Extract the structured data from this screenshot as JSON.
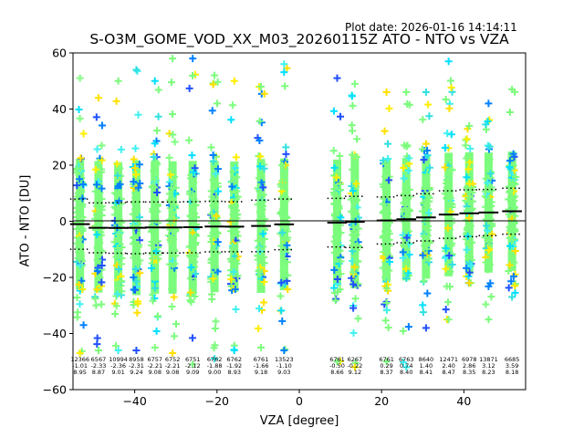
{
  "plot_date": "Plot date: 2026-01-16 14:14:11",
  "colors": {
    "palette": [
      "#7cfc7c",
      "#7cfc7c",
      "#7cfc7c",
      "#80ff80",
      "#7cfc7c",
      "#40f0f0",
      "#30e0e0",
      "#ffee00",
      "#ffe000",
      "#0080ff",
      "#2050ff",
      "#00e0ff"
    ],
    "median": "#000000",
    "frame": "#000000"
  },
  "chart_data": {
    "type": "scatter",
    "title": "S-O3M_GOME_VOD_XX_M03_20260115Z ATO - NTO vs VZA",
    "xlabel": "VZA [degree]",
    "ylabel": "ATO - NTO [DU]",
    "xlim": [
      -55,
      55
    ],
    "ylim": [
      -60,
      60
    ],
    "xticks": [
      -40,
      -20,
      0,
      20,
      40
    ],
    "yticks": [
      -60,
      -40,
      -20,
      0,
      20,
      40,
      60
    ],
    "grid": false,
    "zero_line": 0,
    "bins": [
      {
        "x": -53.3,
        "n": 12366,
        "mean": -1.01,
        "std": 8.95,
        "ymin": -47,
        "ymax": 51
      },
      {
        "x": -48.8,
        "n": 6567,
        "mean": -2.33,
        "std": 8.87,
        "ymin": -46,
        "ymax": 44
      },
      {
        "x": -44.0,
        "n": 10994,
        "mean": -2.36,
        "std": 9.01,
        "ymin": -46,
        "ymax": 50
      },
      {
        "x": -39.6,
        "n": 8958,
        "mean": -2.31,
        "std": 9.24,
        "ymin": -46,
        "ymax": 54
      },
      {
        "x": -35.1,
        "n": 6757,
        "mean": -2.21,
        "std": 9.08,
        "ymin": -45,
        "ymax": 50
      },
      {
        "x": -30.8,
        "n": 6752,
        "mean": -2.21,
        "std": 9.08,
        "ymin": -47,
        "ymax": 58
      },
      {
        "x": -25.9,
        "n": 6751,
        "mean": -2.12,
        "std": 9.09,
        "ymin": -51,
        "ymax": 58
      },
      {
        "x": -20.6,
        "n": 6762,
        "mean": -1.88,
        "std": 9.0,
        "ymin": -49,
        "ymax": 52
      },
      {
        "x": -15.8,
        "n": 6762,
        "mean": -1.92,
        "std": 8.93,
        "ymin": -46,
        "ymax": 50
      },
      {
        "x": -9.3,
        "n": 6761,
        "mean": -1.66,
        "std": 9.18,
        "ymin": -45,
        "ymax": 48
      },
      {
        "x": -3.7,
        "n": 13523,
        "mean": -1.1,
        "std": 9.03,
        "ymin": -46,
        "ymax": 56
      },
      {
        "x": 9.2,
        "n": 6761,
        "mean": -0.5,
        "std": 8.66,
        "ymin": -50,
        "ymax": 51
      },
      {
        "x": 13.5,
        "n": 6267,
        "mean": -0.22,
        "std": 9.12,
        "ymin": -52,
        "ymax": 49
      },
      {
        "x": 21.2,
        "n": 6761,
        "mean": 0.29,
        "std": 8.37,
        "ymin": -50,
        "ymax": 46
      },
      {
        "x": 26.0,
        "n": 6763,
        "mean": 0.74,
        "std": 8.4,
        "ymin": -52,
        "ymax": 46
      },
      {
        "x": 30.8,
        "n": 8640,
        "mean": 1.4,
        "std": 8.41,
        "ymin": -38,
        "ymax": 46
      },
      {
        "x": 36.3,
        "n": 12471,
        "mean": 2.4,
        "std": 8.47,
        "ymin": -35,
        "ymax": 57
      },
      {
        "x": 41.3,
        "n": 6978,
        "mean": 2.86,
        "std": 8.35,
        "ymin": -22,
        "ymax": 34
      },
      {
        "x": 46.0,
        "n": 13871,
        "mean": 3.12,
        "std": 8.23,
        "ymin": -35,
        "ymax": 42
      },
      {
        "x": 51.7,
        "n": 6685,
        "mean": 3.59,
        "std": 8.18,
        "ymin": -27,
        "ymax": 47
      }
    ]
  }
}
